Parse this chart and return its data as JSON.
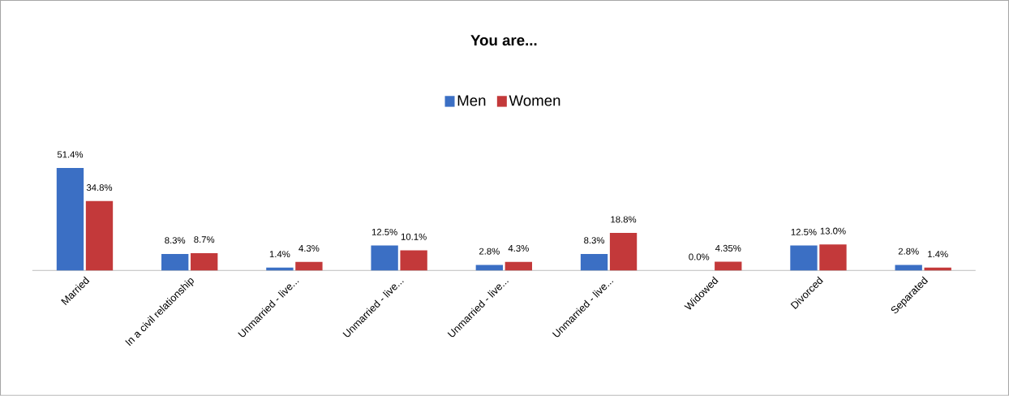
{
  "chart_data": {
    "type": "bar",
    "title": "You are...",
    "categories": [
      "Married",
      "In a civil relationship",
      "Unmarried - live...",
      "Unmarried - live...",
      "Unmarried - live...",
      "Unmarried - live...",
      "Widowed",
      "Divorced",
      "Separated"
    ],
    "series": [
      {
        "name": "Men",
        "color": "#3b6fc4",
        "values": [
          51.4,
          8.3,
          1.4,
          12.5,
          2.8,
          8.3,
          0.0,
          12.5,
          2.8
        ],
        "value_labels": [
          "51.4%",
          "8.3%",
          "1.4%",
          "12.5%",
          "2.8%",
          "8.3%",
          "0.0%",
          "12.5%",
          "2.8%"
        ]
      },
      {
        "name": "Women",
        "color": "#c3393a",
        "values": [
          34.8,
          8.7,
          4.3,
          10.1,
          4.3,
          18.8,
          4.35,
          13.0,
          1.4
        ],
        "value_labels": [
          "34.8%",
          "8.7%",
          "4.3%",
          "10.1%",
          "4.3%",
          "18.8%",
          "4.35%",
          "13.0%",
          "1.4%"
        ]
      }
    ],
    "legend": "top"
  }
}
